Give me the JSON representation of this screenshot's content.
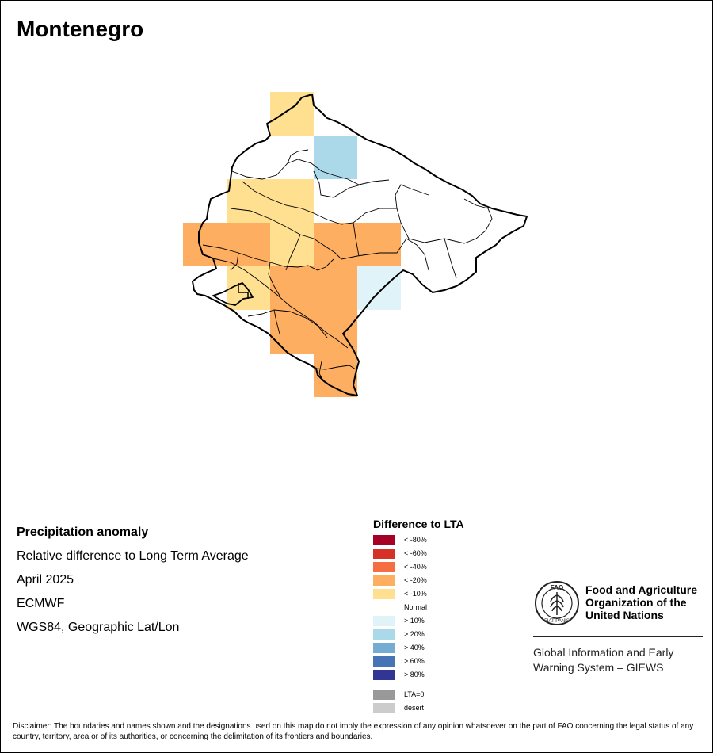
{
  "title": "Montenegro",
  "info": {
    "heading": "Precipitation anomaly",
    "line1": "Relative difference to Long Term Average",
    "line2": "April 2025",
    "line3": "ECMWF",
    "line4": "WGS84, Geographic Lat/Lon"
  },
  "legend": {
    "title": "Difference to LTA",
    "items": [
      {
        "label": "< -80%",
        "color": "#a50026"
      },
      {
        "label": "< -60%",
        "color": "#d73027"
      },
      {
        "label": "< -40%",
        "color": "#f46d43"
      },
      {
        "label": "< -20%",
        "color": "#fdae61"
      },
      {
        "label": "< -10%",
        "color": "#fee090"
      },
      {
        "label": "Normal",
        "color": "#ffffff"
      },
      {
        "label": "> 10%",
        "color": "#e0f3f8"
      },
      {
        "label": "> 20%",
        "color": "#abd9e9"
      },
      {
        "label": "> 40%",
        "color": "#74add1"
      },
      {
        "label": "> 60%",
        "color": "#4575b4"
      },
      {
        "label": "> 80%",
        "color": "#313695"
      }
    ],
    "extra": [
      {
        "label": "LTA=0",
        "color": "#999999"
      },
      {
        "label": "desert",
        "color": "#cccccc"
      }
    ]
  },
  "map_cells": [
    {
      "category": "< -10%"
    },
    {
      "category": "> 20%"
    },
    {
      "category": "< -10%"
    },
    {
      "category": "< -10%"
    },
    {
      "category": "< -20%"
    },
    {
      "category": "< -10%"
    },
    {
      "category": "< -20%"
    },
    {
      "category": "< -10%"
    },
    {
      "category": "< -20%"
    },
    {
      "category": "> 10%"
    },
    {
      "category": "< -20%"
    },
    {
      "category": "< -20%"
    }
  ],
  "fao": {
    "logo_text": "FAO",
    "logo_motto": "FIAT PANIS",
    "name_line1": "Food and Agriculture",
    "name_line2": "Organization of the",
    "name_line3": "United Nations",
    "giews_line1": "Global Information and Early",
    "giews_line2": "Warning System – GIEWS"
  },
  "disclaimer": "Disclaimer: The boundaries and names shown and the designations used on this map do not imply the expression of any opinion whatsoever on the part of FAO concerning the legal status of any country, territory, area or of its authorities, or concerning the delimitation of its frontiers and boundaries."
}
